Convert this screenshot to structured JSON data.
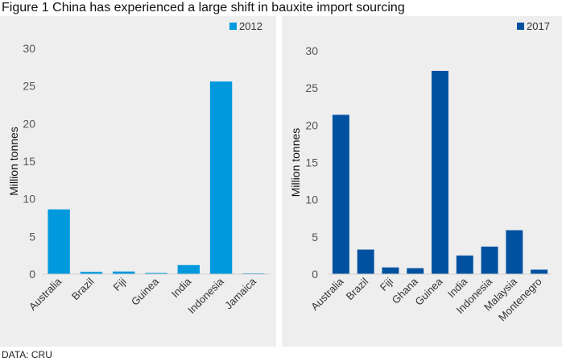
{
  "figure": {
    "title": "Figure 1 China has experienced a large shift in bauxite import sourcing",
    "source": "DATA: CRU"
  },
  "chart_data": [
    {
      "type": "bar",
      "series": [
        {
          "name": "2012",
          "color": "#0099dd",
          "values": [
            8.6,
            0.3,
            0.35,
            0.15,
            1.2,
            25.6,
            0.1
          ]
        }
      ],
      "categories": [
        "Australia",
        "Brazil",
        "Fiji",
        "Guinea",
        "India",
        "Indonesia",
        "Jamaica"
      ],
      "ylabel": "Million tonnes",
      "ylim": [
        0,
        30
      ],
      "yticks": [
        "0",
        "5",
        "10",
        "15",
        "20",
        "25",
        "30"
      ],
      "legend": "top-right",
      "grid": false
    },
    {
      "type": "bar",
      "series": [
        {
          "name": "2017",
          "color": "#0052a0",
          "values": [
            21.4,
            3.3,
            0.9,
            0.8,
            27.3,
            2.5,
            3.7,
            5.9,
            0.6
          ]
        }
      ],
      "categories": [
        "Australia",
        "Brazil",
        "Fiji",
        "Ghana",
        "Guinea",
        "India",
        "Indonesia",
        "Malaysia",
        "Montenegro"
      ],
      "ylabel": "Million tonnes",
      "ylim": [
        0,
        30
      ],
      "yticks": [
        "0",
        "5",
        "10",
        "15",
        "20",
        "25",
        "30"
      ],
      "legend": "top-right",
      "grid": false
    }
  ]
}
